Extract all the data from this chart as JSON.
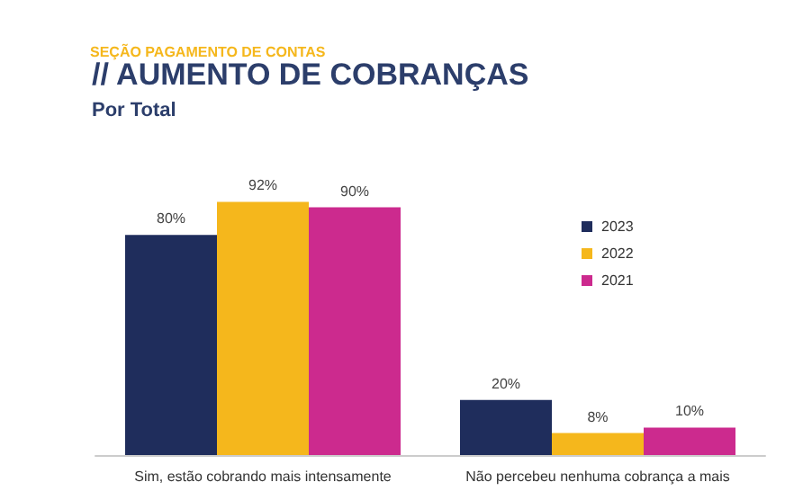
{
  "chart_data": {
    "type": "bar",
    "title": "// AUMENTO DE COBRANÇAS",
    "subtitle": "Por Total",
    "annotations": [
      "SEÇÃO PAGAMENTO DE CONTAS"
    ],
    "categories": [
      "Sim, estão cobrando mais intensamente",
      "Não percebeu nenhuma cobrança a mais"
    ],
    "series": [
      {
        "name": "2023",
        "color": "#1f2d5c",
        "values": [
          80,
          20
        ],
        "value_labels": [
          "80%",
          "20%"
        ]
      },
      {
        "name": "2022",
        "color": "#f5b71c",
        "values": [
          92,
          8
        ],
        "value_labels": [
          "92%",
          "8%"
        ]
      },
      {
        "name": "2021",
        "color": "#cc2a8e",
        "values": [
          90,
          10
        ],
        "value_labels": [
          "90%",
          "10%"
        ]
      }
    ],
    "legend": "right"
  }
}
